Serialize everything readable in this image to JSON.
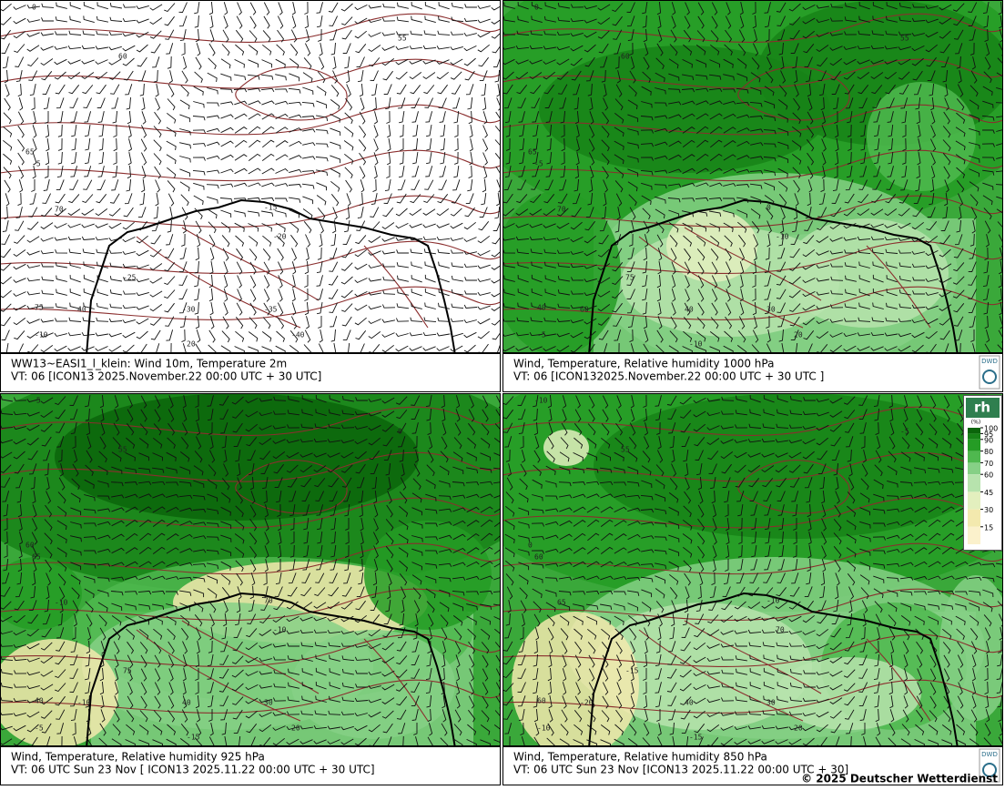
{
  "panels": [
    {
      "caption_line1": "WW13~EASI1_l_klein:  Wind 10m, Temperature   2m",
      "caption_line2": "VT: 06 [ICON13 2025.November.22 00:00 UTC + 30 UTC]",
      "contour_labels": [
        "0",
        "55",
        "60",
        "65",
        "-5",
        "70",
        "-10",
        "-15",
        "-20",
        "-25",
        "-30",
        "-35",
        "-40",
        "75",
        "40",
        "20"
      ]
    },
    {
      "caption_line1": "Wind,  Temperature, Relative humidity 1000 hPa",
      "caption_line2": "VT: 06 [ICON132025.November.22 00:00 UTC +  30 UTC ]",
      "contour_labels": [
        "0",
        "55",
        "60",
        "65",
        "-5",
        "70",
        "-5",
        "0",
        "-10",
        "75",
        "40",
        "30",
        "20",
        "40",
        "60",
        "-10"
      ]
    },
    {
      "caption_line1": "Wind, Temperature, Relative humidity 925 hPa",
      "caption_line2": "VT: 06 UTC Sun  23 Nov [ ICON13 2025.11.22 00:00 UTC + 30 UTC]",
      "contour_labels": [
        "-5",
        "0",
        "55",
        "60",
        "65",
        "-10",
        "-5",
        "70",
        "-10",
        "75",
        "40",
        "30",
        "20",
        "40",
        "-10",
        "-15"
      ]
    },
    {
      "caption_line1": "Wind,  Temperature, Relative humidity 850 hPa",
      "caption_line2": "VT: 06 UTC Sun  23 Nov [ICON13 2025.11.22 00:00 UTC + 30]",
      "contour_labels": [
        "-10",
        "-5",
        "55",
        "0",
        "60",
        "65",
        "-10",
        "-10",
        "70",
        "-15",
        "40",
        "30",
        "20",
        "60",
        "-20",
        "-15"
      ]
    }
  ],
  "logo": "DWD",
  "legend": {
    "title": "rh",
    "unit": "(%)",
    "levels": [
      100,
      95,
      90,
      80,
      70,
      60,
      45,
      30,
      15
    ],
    "colors": [
      "#0b650b",
      "#178217",
      "#259c25",
      "#4fb84f",
      "#86d086",
      "#b7e3ad",
      "#e3efbe",
      "#f3e9ae",
      "#fbf1cc"
    ]
  },
  "copyright": "© 2025 Deutscher Wetterdienst"
}
